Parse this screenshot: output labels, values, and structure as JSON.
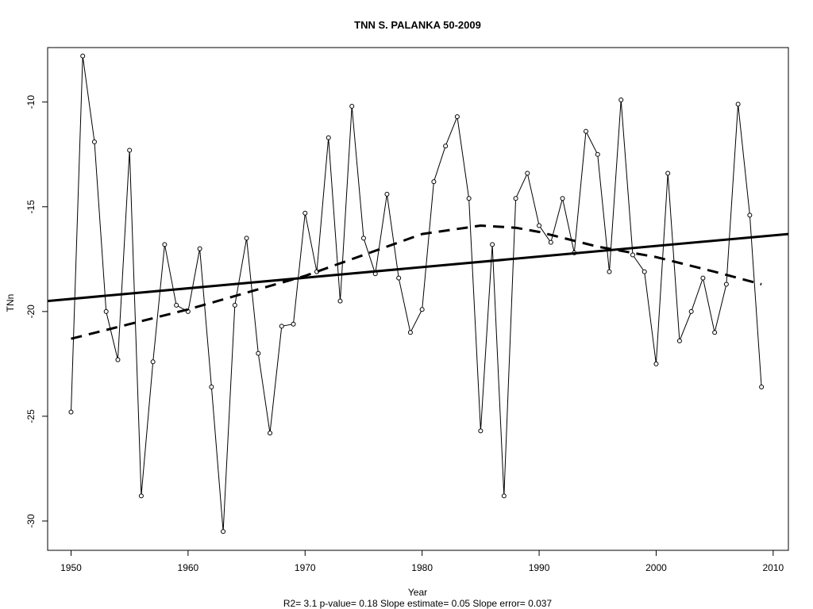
{
  "chart_data": {
    "type": "line",
    "title": "TNN   S. PALANKA 50-2009",
    "xlabel": "Year",
    "ylabel": "TNn",
    "subtitle": "R2= 3.1  p-value= 0.18  Slope estimate= 0.05  Slope error= 0.037",
    "xlim": [
      1948,
      2011.3
    ],
    "ylim": [
      -31.4,
      -7.4
    ],
    "x_ticks": [
      1950,
      1960,
      1970,
      1980,
      1990,
      2000,
      2010
    ],
    "y_ticks": [
      -10,
      -15,
      -20,
      -25,
      -30
    ],
    "grid": false,
    "series": [
      {
        "style": "line-with-open-circles",
        "x": [
          1950,
          1951,
          1952,
          1953,
          1954,
          1955,
          1956,
          1957,
          1958,
          1959,
          1960,
          1961,
          1962,
          1963,
          1964,
          1965,
          1966,
          1967,
          1968,
          1969,
          1970,
          1971,
          1972,
          1973,
          1974,
          1975,
          1976,
          1977,
          1978,
          1979,
          1980,
          1981,
          1982,
          1983,
          1984,
          1985,
          1986,
          1987,
          1988,
          1989,
          1990,
          1991,
          1992,
          1993,
          1994,
          1995,
          1996,
          1997,
          1998,
          1999,
          2000,
          2001,
          2002,
          2003,
          2004,
          2005,
          2006,
          2007,
          2008,
          2009
        ],
        "values": [
          -24.8,
          -7.8,
          -11.9,
          -20.0,
          -22.3,
          -12.3,
          -28.8,
          -22.4,
          -16.8,
          -19.7,
          -20.0,
          -17.0,
          -23.6,
          -30.5,
          -19.7,
          -16.5,
          -22.0,
          -25.8,
          -20.7,
          -20.6,
          -15.3,
          -18.1,
          -11.7,
          -19.5,
          -10.2,
          -16.5,
          -18.2,
          -14.4,
          -18.4,
          -21.0,
          -19.9,
          -13.8,
          -12.1,
          -10.7,
          -14.6,
          -25.7,
          -16.8,
          -28.8,
          -14.6,
          -13.4,
          -15.9,
          -16.7,
          -14.6,
          -17.2,
          -11.4,
          -12.5,
          -18.1,
          -9.9,
          -17.3,
          -18.1,
          -22.5,
          -13.4,
          -21.4,
          -20.0,
          -18.4,
          -21.0,
          -18.7,
          -10.1,
          -15.4,
          -23.6
        ]
      },
      {
        "style": "solid-thick",
        "x": [
          1948,
          2011.3
        ],
        "values": [
          -19.5,
          -16.3
        ]
      },
      {
        "style": "dashed-thick",
        "x": [
          1950,
          1955,
          1960,
          1965,
          1970,
          1975,
          1980,
          1985,
          1988,
          1990,
          1995,
          2000,
          2005,
          2009
        ],
        "values": [
          -21.3,
          -20.6,
          -19.9,
          -19.1,
          -18.3,
          -17.3,
          -16.3,
          -15.9,
          -16.0,
          -16.2,
          -16.9,
          -17.4,
          -18.1,
          -18.7
        ]
      }
    ]
  }
}
